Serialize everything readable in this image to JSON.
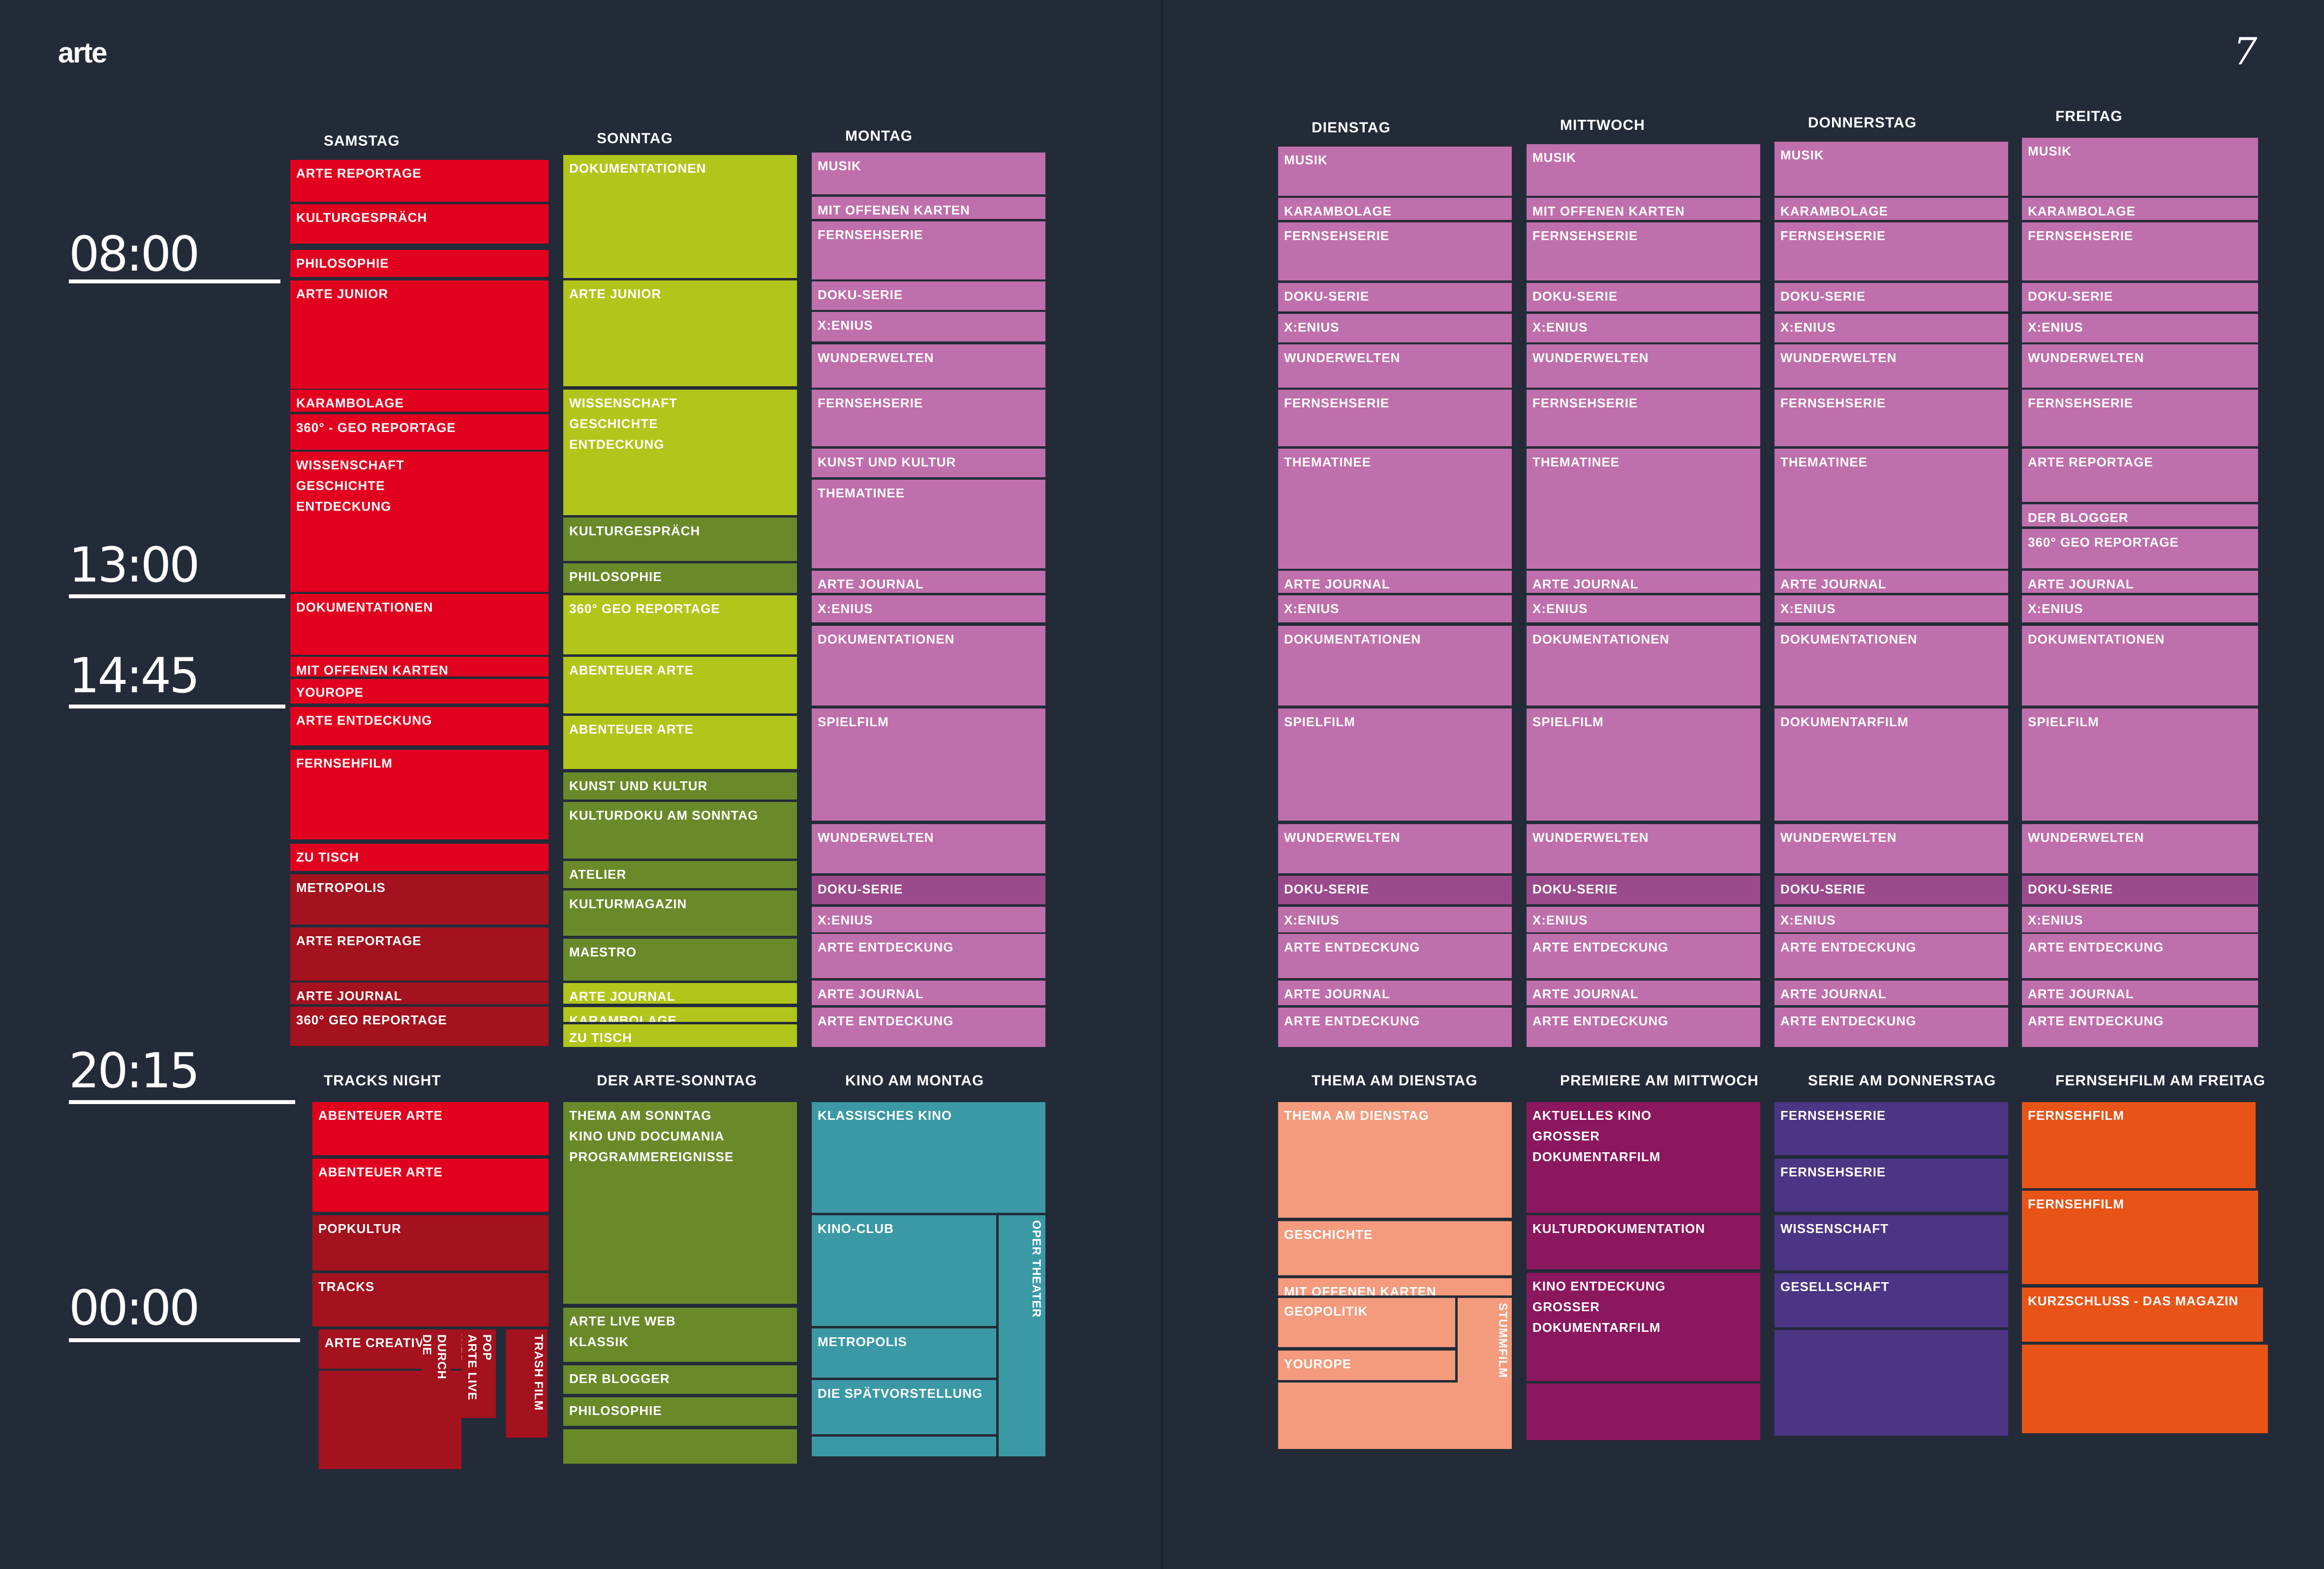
{
  "header": {
    "logo": "arte",
    "page_number": "7"
  },
  "times": [
    "08:00",
    "13:00",
    "14:45",
    "20:15",
    "00:00"
  ],
  "colors": {
    "red": "#e2001f",
    "dark_red": "#a3121e",
    "lime": "#b1c61a",
    "olive": "#6a8a2a",
    "pink": "#bf6fab",
    "dark_pink": "#9b4b8c",
    "teal": "#3a99a4",
    "salmon": "#f39b7c",
    "plum": "#8b175e",
    "violet": "#4b3584",
    "orange": "#e85418",
    "background": "#232b38"
  },
  "days": {
    "samstag": {
      "label": "SAMSTAG",
      "day": [
        "ARTE REPORTAGE",
        "KULTURGESPRÄCH",
        "PHILOSOPHIE",
        "ARTE JUNIOR",
        "KARAMBOLAGE",
        "360° - GEO REPORTAGE",
        "WISSENSCHAFT",
        "GESCHICHTE",
        "ENTDECKUNG",
        "DOKUMENTATIONEN",
        "MIT OFFENEN KARTEN",
        "YOUROPE",
        "ARTE ENTDECKUNG",
        "FERNSEHFILM",
        "ZU TISCH",
        "METROPOLIS",
        "ARTE REPORTAGE",
        "ARTE JOURNAL",
        "360° GEO REPORTAGE"
      ],
      "night_label": "TRACKS NIGHT",
      "night": [
        "ABENTEUER ARTE",
        "ABENTEUER ARTE",
        "POPKULTUR",
        "TRACKS",
        "ARTE CREATIVE",
        "DURCH DIE NACHT",
        "POP",
        "ARTE LIVE WEB",
        "TRASH FILM"
      ]
    },
    "sonntag": {
      "label": "SONNTAG",
      "day": [
        "DOKUMENTATIONEN",
        "ARTE JUNIOR",
        "WISSENSCHAFT",
        "GESCHICHTE",
        "ENTDECKUNG",
        "KULTURGESPRÄCH",
        "PHILOSOPHIE",
        "360° GEO REPORTAGE",
        "ABENTEUER ARTE",
        "ABENTEUER ARTE",
        "KUNST UND KULTUR",
        "KULTURDOKU AM SONNTAG",
        "ATELIER",
        "KULTURMAGAZIN",
        "MAESTRO",
        "ARTE JOURNAL",
        "KARAMBOLAGE",
        "ZU TISCH"
      ],
      "night_label": "DER ARTE-SONNTAG",
      "night": [
        "THEMA AM SONNTAG",
        "KINO UND DOCUMANIA",
        "PROGRAMMEREIGNISSE",
        "ARTE LIVE WEB",
        "KLASSIK",
        "DER BLOGGER",
        "PHILOSOPHIE"
      ]
    },
    "montag": {
      "label": "MONTAG",
      "day": [
        "MUSIK",
        "MIT OFFENEN KARTEN",
        "FERNSEHSERIE",
        "DOKU-SERIE",
        "X:ENIUS",
        "WUNDERWELTEN",
        "FERNSEHSERIE",
        "KUNST UND KULTUR",
        "THEMATINEE",
        "ARTE JOURNAL",
        "X:ENIUS",
        "DOKUMENTATIONEN",
        "SPIELFILM",
        "WUNDERWELTEN",
        "DOKU-SERIE",
        "X:ENIUS",
        "ARTE ENTDECKUNG",
        "ARTE JOURNAL",
        "ARTE ENTDECKUNG"
      ],
      "night_label": "KINO AM MONTAG",
      "night": [
        "KLASSISCHES KINO",
        "KINO-CLUB",
        "OPER THEATER",
        "METROPOLIS",
        "DIE SPÄTVORSTELLUNG"
      ]
    },
    "dienstag": {
      "label": "DIENSTAG",
      "day": [
        "MUSIK",
        "KARAMBOLAGE",
        "FERNSEHSERIE",
        "DOKU-SERIE",
        "X:ENIUS",
        "WUNDERWELTEN",
        "FERNSEHSERIE",
        "THEMATINEE",
        "ARTE JOURNAL",
        "X:ENIUS",
        "DOKUMENTATIONEN",
        "SPIELFILM",
        "WUNDERWELTEN",
        "DOKU-SERIE",
        "X:ENIUS",
        "ARTE ENTDECKUNG",
        "ARTE JOURNAL",
        "ARTE ENTDECKUNG"
      ],
      "night_label": "THEMA AM DIENSTAG",
      "night": [
        "THEMA AM DIENSTAG",
        "GESCHICHTE",
        "MIT OFFENEN KARTEN",
        "GEOPOLITIK",
        "STUMMFILM",
        "YOUROPE"
      ]
    },
    "mittwoch": {
      "label": "MITTWOCH",
      "day": [
        "MUSIK",
        "MIT OFFENEN KARTEN",
        "FERNSEHSERIE",
        "DOKU-SERIE",
        "X:ENIUS",
        "WUNDERWELTEN",
        "FERNSEHSERIE",
        "THEMATINEE",
        "ARTE JOURNAL",
        "X:ENIUS",
        "DOKUMENTATIONEN",
        "SPIELFILM",
        "WUNDERWELTEN",
        "DOKU-SERIE",
        "X:ENIUS",
        "ARTE ENTDECKUNG",
        "ARTE JOURNAL",
        "ARTE ENTDECKUNG"
      ],
      "night_label": "PREMIERE AM MITTWOCH",
      "night": [
        "AKTUELLES KINO",
        "GROSSER",
        "DOKUMENTARFILM",
        "KULTURDOKUMENTATION",
        "KINO ENTDECKUNG",
        "GROSSER",
        "DOKUMENTARFILM"
      ]
    },
    "donnerstag": {
      "label": "DONNERSTAG",
      "day": [
        "MUSIK",
        "KARAMBOLAGE",
        "FERNSEHSERIE",
        "DOKU-SERIE",
        "X:ENIUS",
        "WUNDERWELTEN",
        "FERNSEHSERIE",
        "THEMATINEE",
        "ARTE JOURNAL",
        "X:ENIUS",
        "DOKUMENTATIONEN",
        "DOKUMENTARFILM",
        "WUNDERWELTEN",
        "DOKU-SERIE",
        "X:ENIUS",
        "ARTE ENTDECKUNG",
        "ARTE JOURNAL",
        "ARTE ENTDECKUNG"
      ],
      "night_label": "SERIE AM DONNERSTAG",
      "night": [
        "FERNSEHSERIE",
        "FERNSEHSERIE",
        "WISSENSCHAFT",
        "GESELLSCHAFT"
      ]
    },
    "freitag": {
      "label": "FREITAG",
      "day": [
        "MUSIK",
        "KARAMBOLAGE",
        "FERNSEHSERIE",
        "DOKU-SERIE",
        "X:ENIUS",
        "WUNDERWELTEN",
        "FERNSEHSERIE",
        "ARTE REPORTAGE",
        "DER BLOGGER",
        "360° GEO REPORTAGE",
        "ARTE JOURNAL",
        "X:ENIUS",
        "DOKUMENTATIONEN",
        "SPIELFILM",
        "WUNDERWELTEN",
        "DOKU-SERIE",
        "X:ENIUS",
        "ARTE ENTDECKUNG",
        "ARTE JOURNAL",
        "ARTE ENTDECKUNG"
      ],
      "night_label": "FERNSEHFILM AM FREITAG",
      "night": [
        "FERNSEHFILM",
        "FERNSEHFILM",
        "KURZSCHLUSS - DAS MAGAZIN"
      ]
    }
  }
}
